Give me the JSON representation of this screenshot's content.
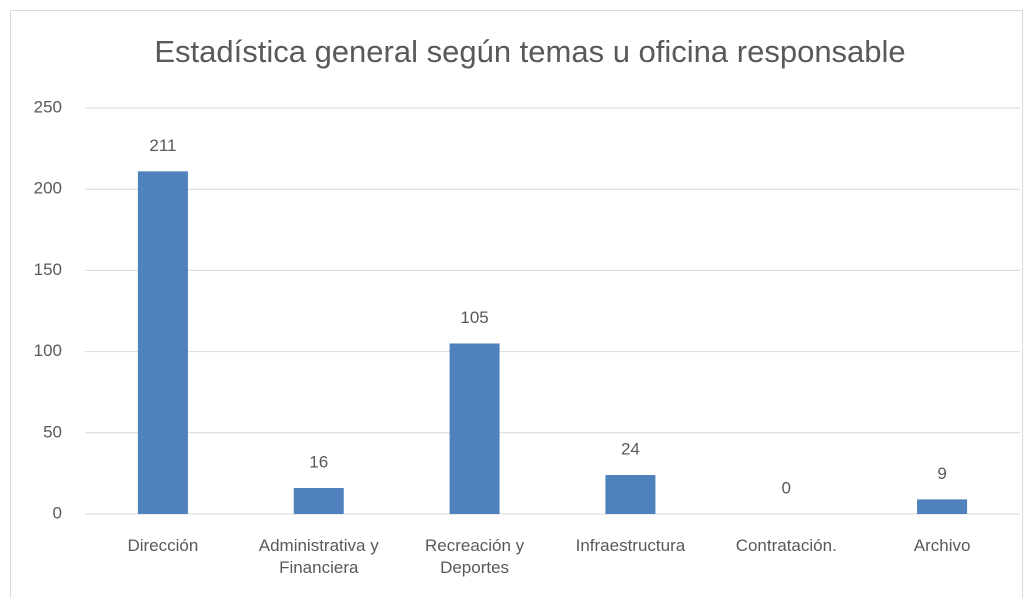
{
  "chart_data": {
    "type": "bar",
    "title": "Estadística general según temas u oficina responsable",
    "categories": [
      "Dirección",
      "Administrativa y Financiera",
      "Recreación y Deportes",
      "Infraestructura",
      "Contratación.",
      "Archivo"
    ],
    "values": [
      211,
      16,
      105,
      24,
      0,
      9
    ],
    "color": "#4f81bd",
    "ylim": [
      0,
      250
    ],
    "yticks": [
      0,
      50,
      100,
      150,
      200,
      250
    ],
    "grid": true
  }
}
